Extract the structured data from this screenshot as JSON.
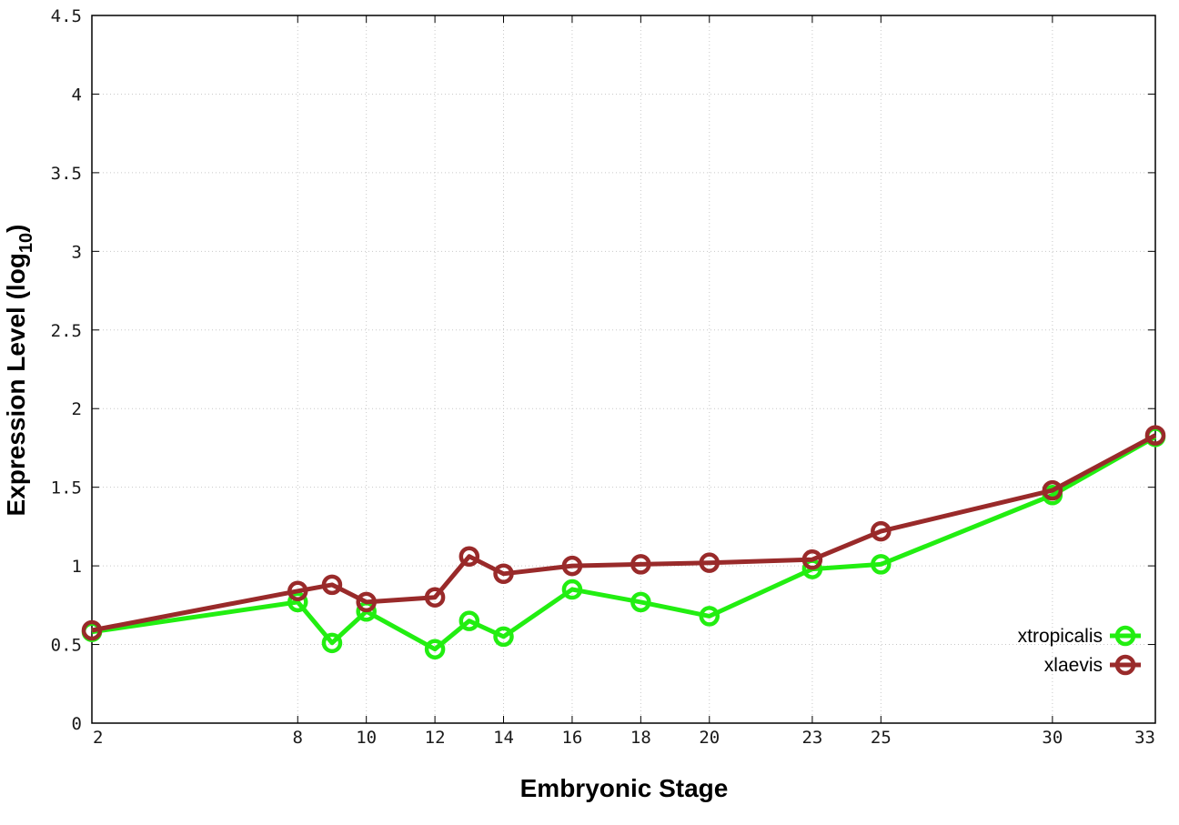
{
  "chart_data": {
    "type": "line",
    "xlabel": "Embryonic Stage",
    "ylabel_main": "Expression Level (log",
    "ylabel_sub": "10",
    "ylabel_close": ")",
    "xlim": [
      2,
      33
    ],
    "ylim": [
      0,
      4.5
    ],
    "xticks": [
      2,
      8,
      10,
      12,
      14,
      16,
      18,
      20,
      23,
      25,
      30,
      33
    ],
    "yticks": [
      0,
      0.5,
      1,
      1.5,
      2,
      2.5,
      3,
      3.5,
      4,
      4.5
    ],
    "ytick_labels": [
      "0",
      "0.5",
      "1",
      "1.5",
      "2",
      "2.5",
      "3",
      "3.5",
      "4",
      "4.5"
    ],
    "grid": true,
    "legend_position": "bottom-right",
    "series": [
      {
        "name": "xtropicalis",
        "color": "#22ee11",
        "x": [
          2,
          8,
          9,
          10,
          12,
          13,
          14,
          16,
          18,
          20,
          23,
          25,
          30,
          33
        ],
        "y": [
          0.58,
          0.77,
          0.51,
          0.71,
          0.47,
          0.65,
          0.55,
          0.85,
          0.77,
          0.68,
          0.98,
          1.01,
          1.45,
          1.82
        ]
      },
      {
        "name": "xlaevis",
        "color": "#992a2a",
        "x": [
          2,
          8,
          9,
          10,
          12,
          13,
          14,
          16,
          18,
          20,
          23,
          25,
          30,
          33
        ],
        "y": [
          0.59,
          0.84,
          0.88,
          0.77,
          0.8,
          1.06,
          0.95,
          1.0,
          1.01,
          1.02,
          1.04,
          1.22,
          1.48,
          1.83
        ]
      }
    ]
  }
}
